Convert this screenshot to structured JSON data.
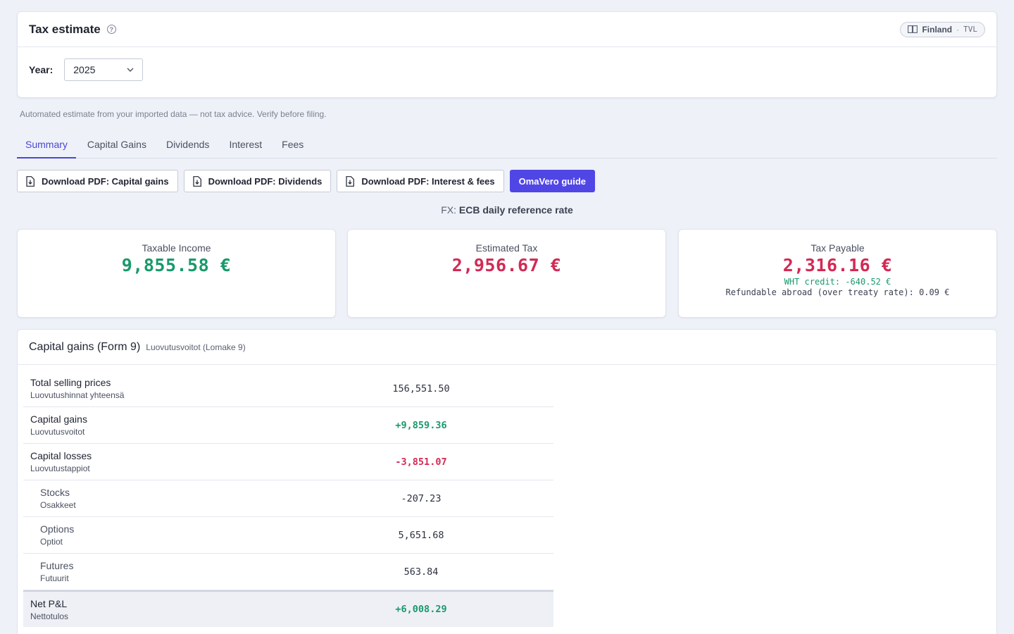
{
  "header": {
    "title": "Tax estimate",
    "region": {
      "country": "Finland",
      "separator": "·",
      "code": "TVL"
    },
    "year_label": "Year:",
    "year_value": "2025"
  },
  "disclaimer": "Automated estimate from your imported data — not tax advice. Verify before filing.",
  "tabs": [
    {
      "label": "Summary",
      "active": true
    },
    {
      "label": "Capital Gains"
    },
    {
      "label": "Dividends"
    },
    {
      "label": "Interest"
    },
    {
      "label": "Fees"
    }
  ],
  "actions": {
    "pdf_capital_gains": "Download PDF: Capital gains",
    "pdf_dividends": "Download PDF: Dividends",
    "pdf_interest_fees": "Download PDF: Interest & fees",
    "omavero_guide": "OmaVero guide"
  },
  "fx": {
    "prefix": "FX:",
    "source": "ECB daily reference rate"
  },
  "stats": {
    "taxable_income": {
      "label": "Taxable Income",
      "value": "9,855.58 €"
    },
    "estimated_tax": {
      "label": "Estimated Tax",
      "value": "2,956.67 €"
    },
    "tax_payable": {
      "label": "Tax Payable",
      "value": "2,316.16 €",
      "wht_credit": "WHT credit: -640.52 €",
      "refundable": "Refundable abroad (over treaty rate): 0.09 €"
    }
  },
  "capital_gains": {
    "title": "Capital gains (Form 9)",
    "subtitle": "Luovutusvoitot (Lomake 9)",
    "rows": [
      {
        "name": "Total selling prices",
        "fi": "Luovutushinnat yhteensä",
        "value": "156,551.50"
      },
      {
        "name": "Capital gains",
        "fi": "Luovutusvoitot",
        "value": "+9,859.36"
      },
      {
        "name": "Capital losses",
        "fi": "Luovutustappiot",
        "value": "-3,851.07"
      },
      {
        "name": "Stocks",
        "fi": "Osakkeet",
        "value": "-207.23"
      },
      {
        "name": "Options",
        "fi": "Optiot",
        "value": "5,651.68"
      },
      {
        "name": "Futures",
        "fi": "Futuurit",
        "value": "563.84"
      },
      {
        "name": "Net P&L",
        "fi": "Nettotulos",
        "value": "+6,008.29"
      }
    ]
  },
  "colors": {
    "accent": "#5046e5",
    "positive": "#189a6a",
    "negative": "#d22a55"
  }
}
